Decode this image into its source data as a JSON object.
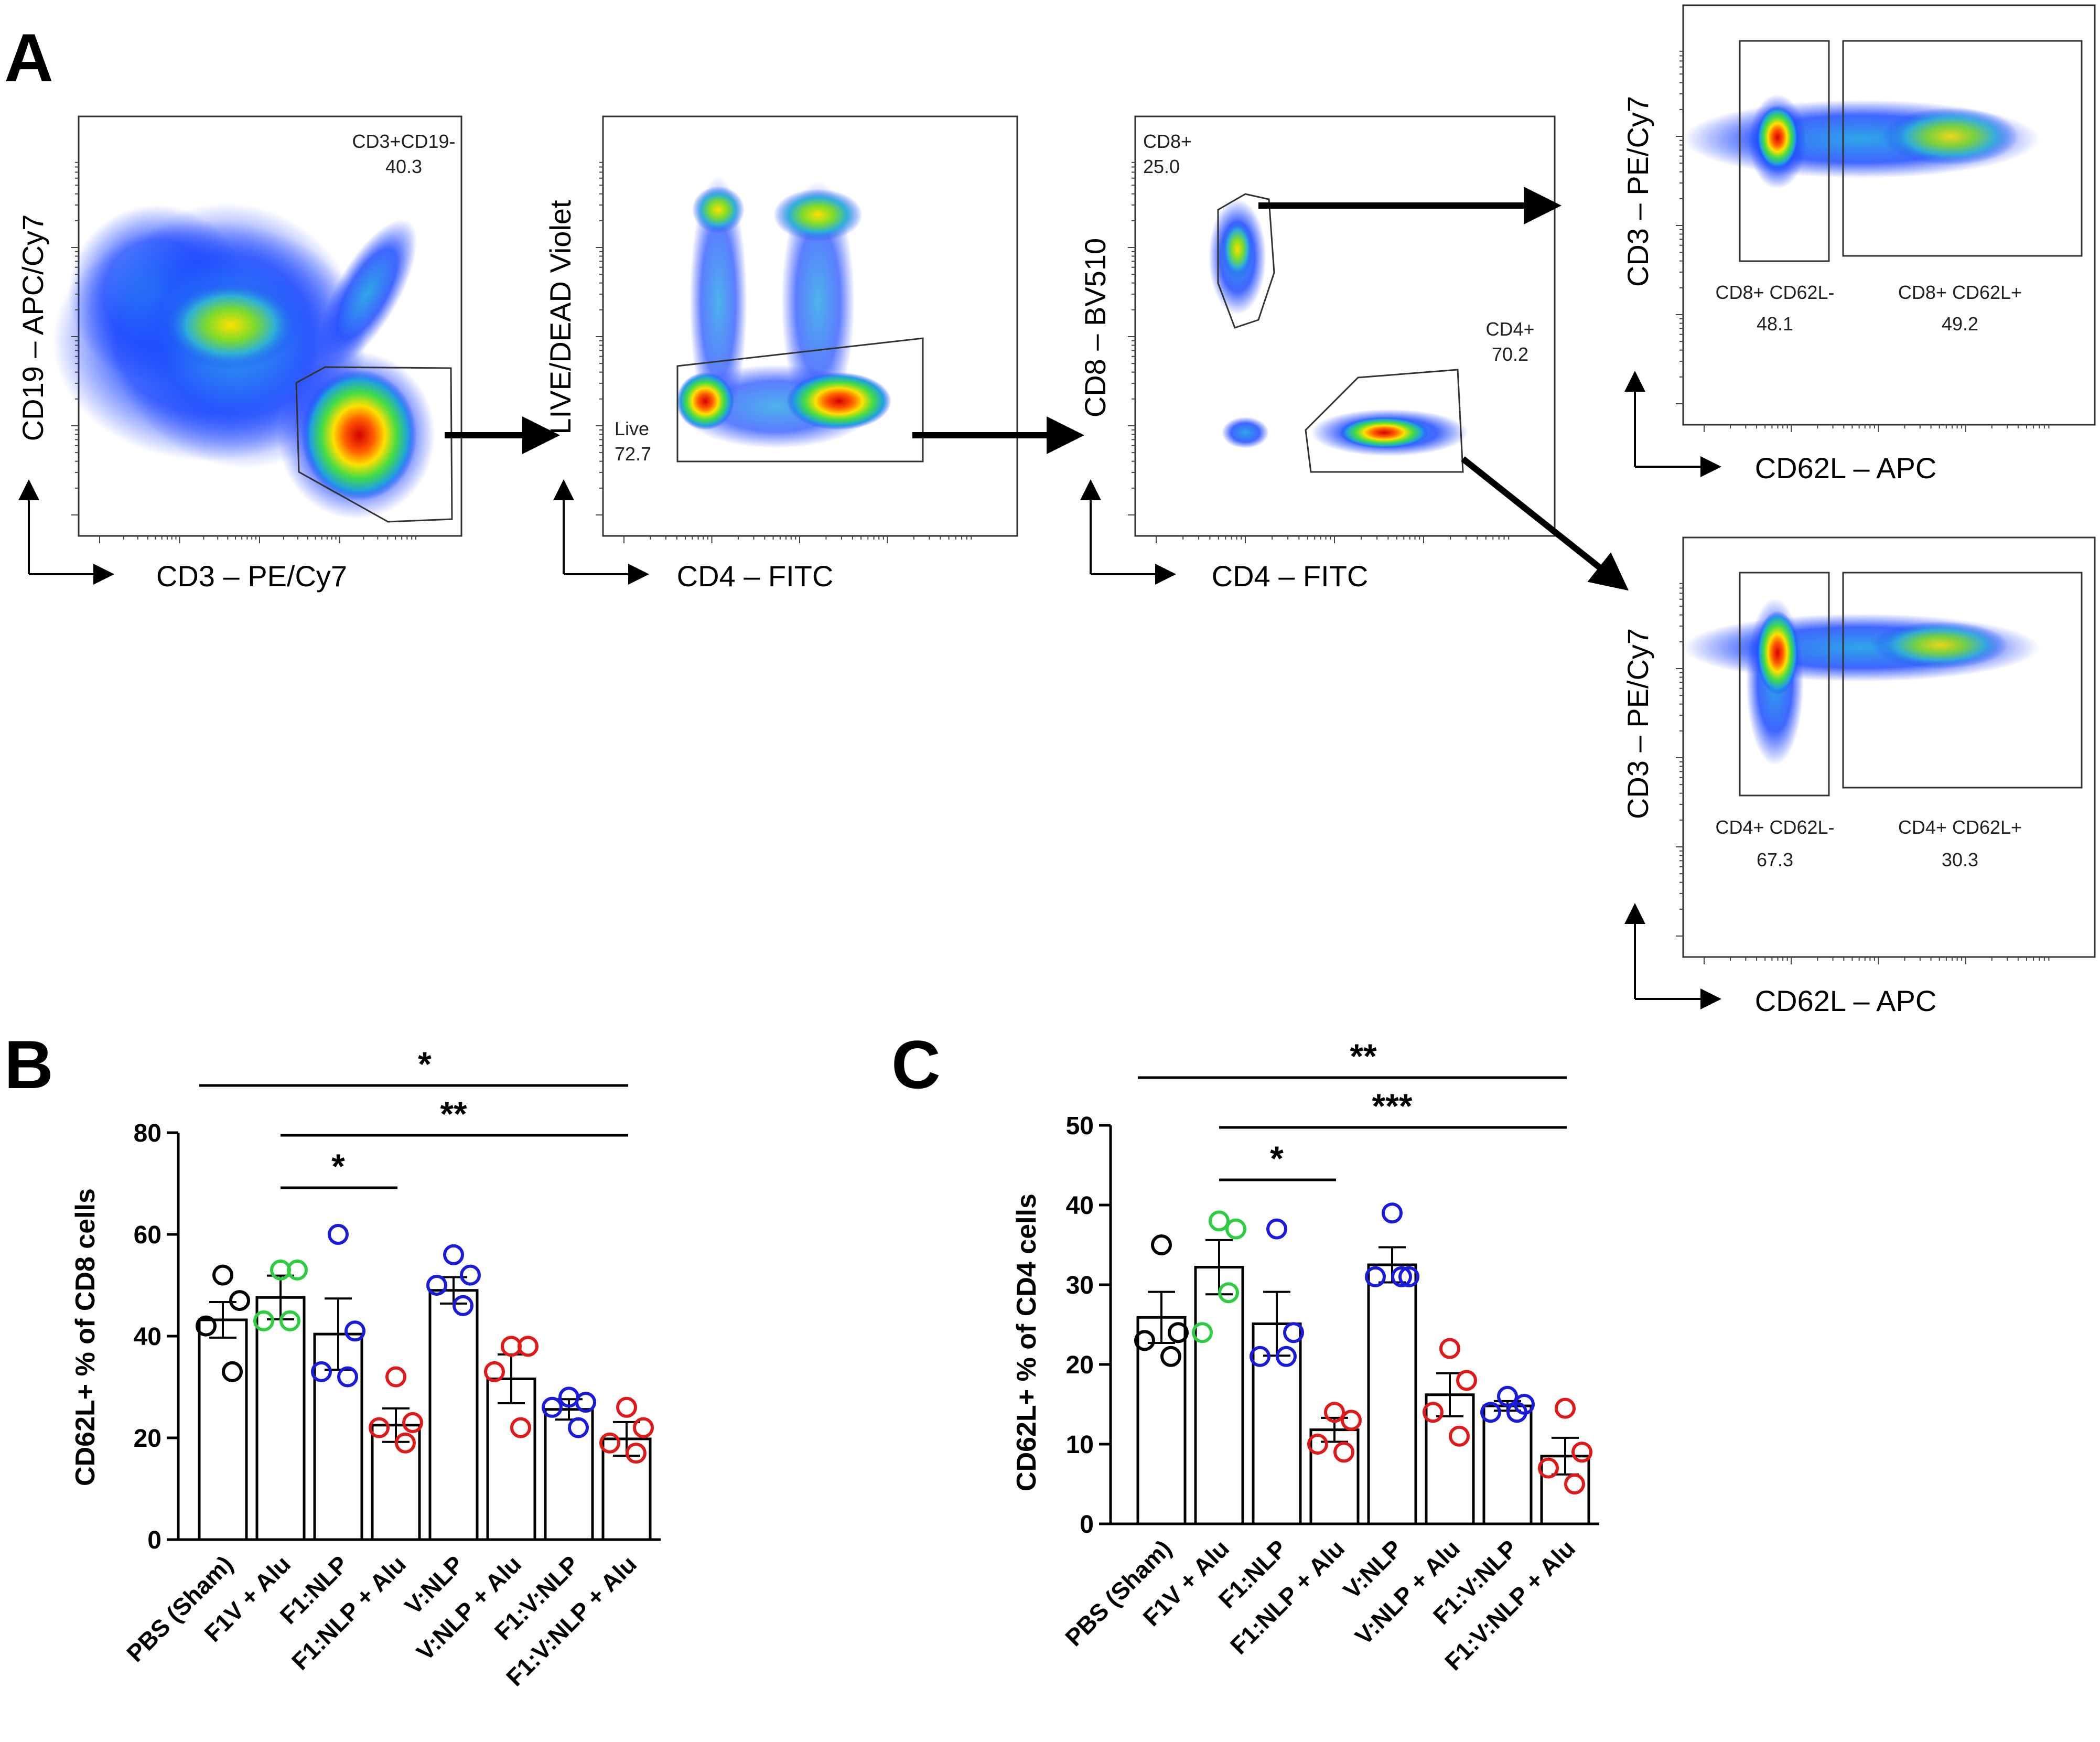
{
  "panels": {
    "a": "A",
    "b": "B",
    "c": "C"
  },
  "flow": [
    {
      "id": "p1",
      "xlabel": "CD3 – PE/Cy7",
      "ylabel": "CD19 – APC/Cy7",
      "gates": [
        {
          "name": "CD3+CD19-",
          "value": "40.3"
        }
      ]
    },
    {
      "id": "p2",
      "xlabel": "CD4 – FITC",
      "ylabel": "LIVE/DEAD Violet",
      "gates": [
        {
          "name": "Live",
          "value": "72.7"
        }
      ]
    },
    {
      "id": "p3",
      "xlabel": "CD4 – FITC",
      "ylabel": "CD8 – BV510",
      "gates": [
        {
          "name": "CD8+",
          "value": "25.0"
        },
        {
          "name": "CD4+",
          "value": "70.2"
        }
      ]
    },
    {
      "id": "p4",
      "xlabel": "CD62L – APC",
      "ylabel": "CD3 – PE/Cy7",
      "gates": [
        {
          "name": "CD8+ CD62L-",
          "value": "48.1"
        },
        {
          "name": "CD8+ CD62L+",
          "value": "49.2"
        }
      ]
    },
    {
      "id": "p5",
      "xlabel": "CD62L – APC",
      "ylabel": "CD3 – PE/Cy7",
      "gates": [
        {
          "name": "CD4+ CD62L-",
          "value": "67.3"
        },
        {
          "name": "CD4+ CD62L+",
          "value": "30.3"
        }
      ]
    }
  ],
  "chart_data": [
    {
      "type": "bar",
      "panel": "B",
      "ylabel": "CD62L+ % of CD8 cells",
      "ylim": [
        0,
        80
      ],
      "yticks": [
        0,
        20,
        40,
        60,
        80
      ],
      "categories": [
        "PBS (Sham)",
        "F1V + Alu",
        "F1:NLP",
        "F1:NLP + Alu",
        "V:NLP",
        "V:NLP + Alu",
        "F1:V:NLP",
        "F1:V:NLP + Alu"
      ],
      "values": [
        43.2,
        47.6,
        40.4,
        22.5,
        49.0,
        31.6,
        25.6,
        19.8
      ],
      "sem": [
        3.5,
        4.3,
        7.0,
        3.3,
        2.6,
        4.8,
        2.0,
        3.3
      ],
      "points": [
        [
          52,
          47,
          42,
          33
        ],
        [
          53,
          53,
          43,
          43
        ],
        [
          60,
          41,
          33,
          32
        ],
        [
          32,
          23,
          22,
          19
        ],
        [
          56,
          52,
          50,
          46
        ],
        [
          38,
          38,
          33,
          22
        ],
        [
          28,
          27,
          26,
          22
        ],
        [
          26,
          22,
          19,
          17
        ]
      ],
      "point_colors": [
        "#000000",
        "#2ecc40",
        "#1a1adc",
        "#e01818",
        "#1a1adc",
        "#e01818",
        "#1a1adc",
        "#e01818"
      ],
      "significance": [
        {
          "from": 0,
          "to": 7,
          "label": "*"
        },
        {
          "from": 1,
          "to": 7,
          "label": "**"
        },
        {
          "from": 1,
          "to": 3,
          "label": "*"
        }
      ]
    },
    {
      "type": "bar",
      "panel": "C",
      "ylabel": "CD62L+ % of CD4 cells",
      "ylim": [
        0,
        50
      ],
      "yticks": [
        0,
        10,
        20,
        30,
        40,
        50
      ],
      "categories": [
        "PBS (Sham)",
        "F1V + Alu",
        "F1:NLP",
        "F1:NLP + Alu",
        "V:NLP",
        "V:NLP + Alu",
        "F1:V:NLP",
        "F1:V:NLP + Alu"
      ],
      "values": [
        25.9,
        32.2,
        25.1,
        11.8,
        32.5,
        16.2,
        14.8,
        8.5
      ],
      "sem": [
        3.2,
        3.4,
        4.0,
        1.5,
        2.2,
        2.7,
        0.6,
        2.3
      ],
      "points": [
        [
          35,
          24,
          23,
          21
        ],
        [
          38,
          37,
          24,
          29
        ],
        [
          37,
          24,
          21,
          21
        ],
        [
          14,
          13,
          10,
          9
        ],
        [
          39,
          31,
          31,
          31
        ],
        [
          22,
          18,
          14,
          11
        ],
        [
          16,
          15,
          14,
          14
        ],
        [
          14.5,
          9,
          7,
          5
        ]
      ],
      "point_colors": [
        "#000000",
        "#2ecc40",
        "#1a1adc",
        "#e01818",
        "#1a1adc",
        "#e01818",
        "#1a1adc",
        "#e01818"
      ],
      "significance": [
        {
          "from": 0,
          "to": 7,
          "label": "**"
        },
        {
          "from": 1,
          "to": 7,
          "label": "***"
        },
        {
          "from": 1,
          "to": 3,
          "label": "*"
        }
      ]
    }
  ]
}
